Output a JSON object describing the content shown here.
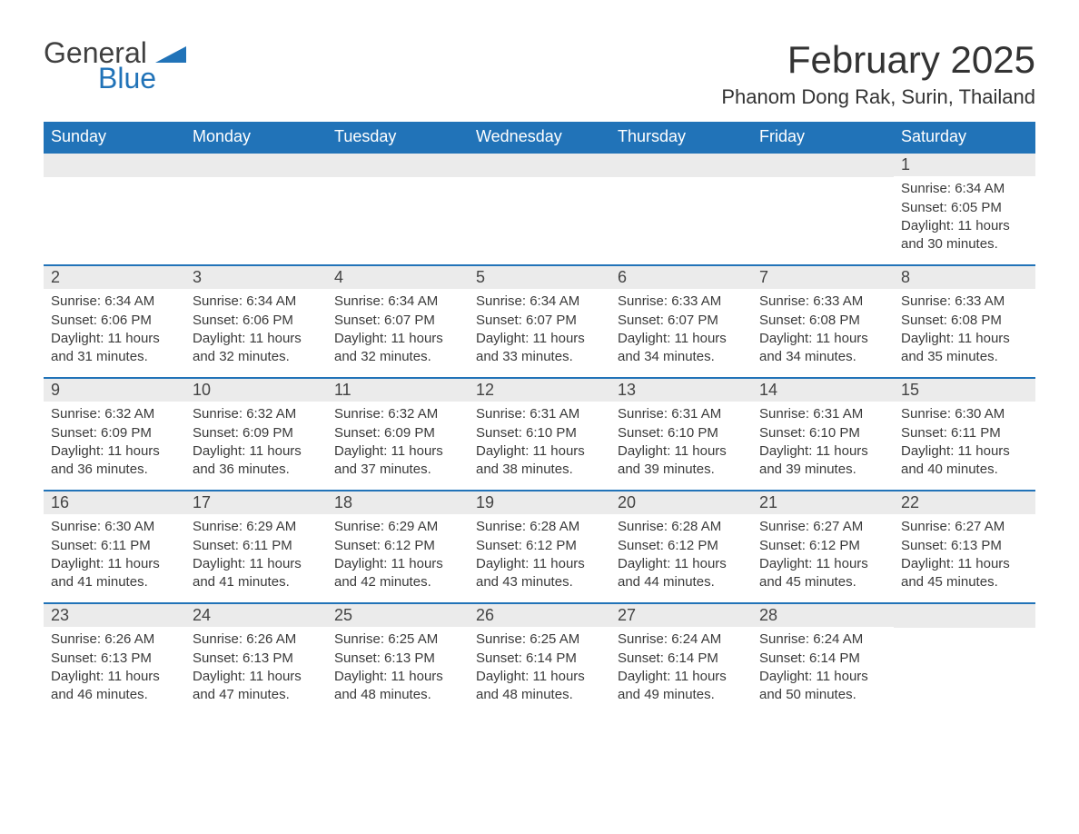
{
  "brand": {
    "name1": "General",
    "name2": "Blue",
    "flag_color": "#2173b8"
  },
  "header": {
    "title": "February 2025",
    "location": "Phanom Dong Rak, Surin, Thailand"
  },
  "style": {
    "header_bg": "#2173b8",
    "band_bg": "#ebebeb",
    "rule_color": "#2173b8",
    "text_color": "#333333",
    "title_fontsize": 42,
    "location_fontsize": 22,
    "weekday_fontsize": 18,
    "daynum_fontsize": 18,
    "body_fontsize": 15
  },
  "weekdays": [
    "Sunday",
    "Monday",
    "Tuesday",
    "Wednesday",
    "Thursday",
    "Friday",
    "Saturday"
  ],
  "weeks": [
    [
      {
        "blank": true
      },
      {
        "blank": true
      },
      {
        "blank": true
      },
      {
        "blank": true
      },
      {
        "blank": true
      },
      {
        "blank": true
      },
      {
        "n": "1",
        "sunrise": "Sunrise: 6:34 AM",
        "sunset": "Sunset: 6:05 PM",
        "daylight": "Daylight: 11 hours and 30 minutes."
      }
    ],
    [
      {
        "n": "2",
        "sunrise": "Sunrise: 6:34 AM",
        "sunset": "Sunset: 6:06 PM",
        "daylight": "Daylight: 11 hours and 31 minutes."
      },
      {
        "n": "3",
        "sunrise": "Sunrise: 6:34 AM",
        "sunset": "Sunset: 6:06 PM",
        "daylight": "Daylight: 11 hours and 32 minutes."
      },
      {
        "n": "4",
        "sunrise": "Sunrise: 6:34 AM",
        "sunset": "Sunset: 6:07 PM",
        "daylight": "Daylight: 11 hours and 32 minutes."
      },
      {
        "n": "5",
        "sunrise": "Sunrise: 6:34 AM",
        "sunset": "Sunset: 6:07 PM",
        "daylight": "Daylight: 11 hours and 33 minutes."
      },
      {
        "n": "6",
        "sunrise": "Sunrise: 6:33 AM",
        "sunset": "Sunset: 6:07 PM",
        "daylight": "Daylight: 11 hours and 34 minutes."
      },
      {
        "n": "7",
        "sunrise": "Sunrise: 6:33 AM",
        "sunset": "Sunset: 6:08 PM",
        "daylight": "Daylight: 11 hours and 34 minutes."
      },
      {
        "n": "8",
        "sunrise": "Sunrise: 6:33 AM",
        "sunset": "Sunset: 6:08 PM",
        "daylight": "Daylight: 11 hours and 35 minutes."
      }
    ],
    [
      {
        "n": "9",
        "sunrise": "Sunrise: 6:32 AM",
        "sunset": "Sunset: 6:09 PM",
        "daylight": "Daylight: 11 hours and 36 minutes."
      },
      {
        "n": "10",
        "sunrise": "Sunrise: 6:32 AM",
        "sunset": "Sunset: 6:09 PM",
        "daylight": "Daylight: 11 hours and 36 minutes."
      },
      {
        "n": "11",
        "sunrise": "Sunrise: 6:32 AM",
        "sunset": "Sunset: 6:09 PM",
        "daylight": "Daylight: 11 hours and 37 minutes."
      },
      {
        "n": "12",
        "sunrise": "Sunrise: 6:31 AM",
        "sunset": "Sunset: 6:10 PM",
        "daylight": "Daylight: 11 hours and 38 minutes."
      },
      {
        "n": "13",
        "sunrise": "Sunrise: 6:31 AM",
        "sunset": "Sunset: 6:10 PM",
        "daylight": "Daylight: 11 hours and 39 minutes."
      },
      {
        "n": "14",
        "sunrise": "Sunrise: 6:31 AM",
        "sunset": "Sunset: 6:10 PM",
        "daylight": "Daylight: 11 hours and 39 minutes."
      },
      {
        "n": "15",
        "sunrise": "Sunrise: 6:30 AM",
        "sunset": "Sunset: 6:11 PM",
        "daylight": "Daylight: 11 hours and 40 minutes."
      }
    ],
    [
      {
        "n": "16",
        "sunrise": "Sunrise: 6:30 AM",
        "sunset": "Sunset: 6:11 PM",
        "daylight": "Daylight: 11 hours and 41 minutes."
      },
      {
        "n": "17",
        "sunrise": "Sunrise: 6:29 AM",
        "sunset": "Sunset: 6:11 PM",
        "daylight": "Daylight: 11 hours and 41 minutes."
      },
      {
        "n": "18",
        "sunrise": "Sunrise: 6:29 AM",
        "sunset": "Sunset: 6:12 PM",
        "daylight": "Daylight: 11 hours and 42 minutes."
      },
      {
        "n": "19",
        "sunrise": "Sunrise: 6:28 AM",
        "sunset": "Sunset: 6:12 PM",
        "daylight": "Daylight: 11 hours and 43 minutes."
      },
      {
        "n": "20",
        "sunrise": "Sunrise: 6:28 AM",
        "sunset": "Sunset: 6:12 PM",
        "daylight": "Daylight: 11 hours and 44 minutes."
      },
      {
        "n": "21",
        "sunrise": "Sunrise: 6:27 AM",
        "sunset": "Sunset: 6:12 PM",
        "daylight": "Daylight: 11 hours and 45 minutes."
      },
      {
        "n": "22",
        "sunrise": "Sunrise: 6:27 AM",
        "sunset": "Sunset: 6:13 PM",
        "daylight": "Daylight: 11 hours and 45 minutes."
      }
    ],
    [
      {
        "n": "23",
        "sunrise": "Sunrise: 6:26 AM",
        "sunset": "Sunset: 6:13 PM",
        "daylight": "Daylight: 11 hours and 46 minutes."
      },
      {
        "n": "24",
        "sunrise": "Sunrise: 6:26 AM",
        "sunset": "Sunset: 6:13 PM",
        "daylight": "Daylight: 11 hours and 47 minutes."
      },
      {
        "n": "25",
        "sunrise": "Sunrise: 6:25 AM",
        "sunset": "Sunset: 6:13 PM",
        "daylight": "Daylight: 11 hours and 48 minutes."
      },
      {
        "n": "26",
        "sunrise": "Sunrise: 6:25 AM",
        "sunset": "Sunset: 6:14 PM",
        "daylight": "Daylight: 11 hours and 48 minutes."
      },
      {
        "n": "27",
        "sunrise": "Sunrise: 6:24 AM",
        "sunset": "Sunset: 6:14 PM",
        "daylight": "Daylight: 11 hours and 49 minutes."
      },
      {
        "n": "28",
        "sunrise": "Sunrise: 6:24 AM",
        "sunset": "Sunset: 6:14 PM",
        "daylight": "Daylight: 11 hours and 50 minutes."
      },
      {
        "blank": true
      }
    ]
  ]
}
